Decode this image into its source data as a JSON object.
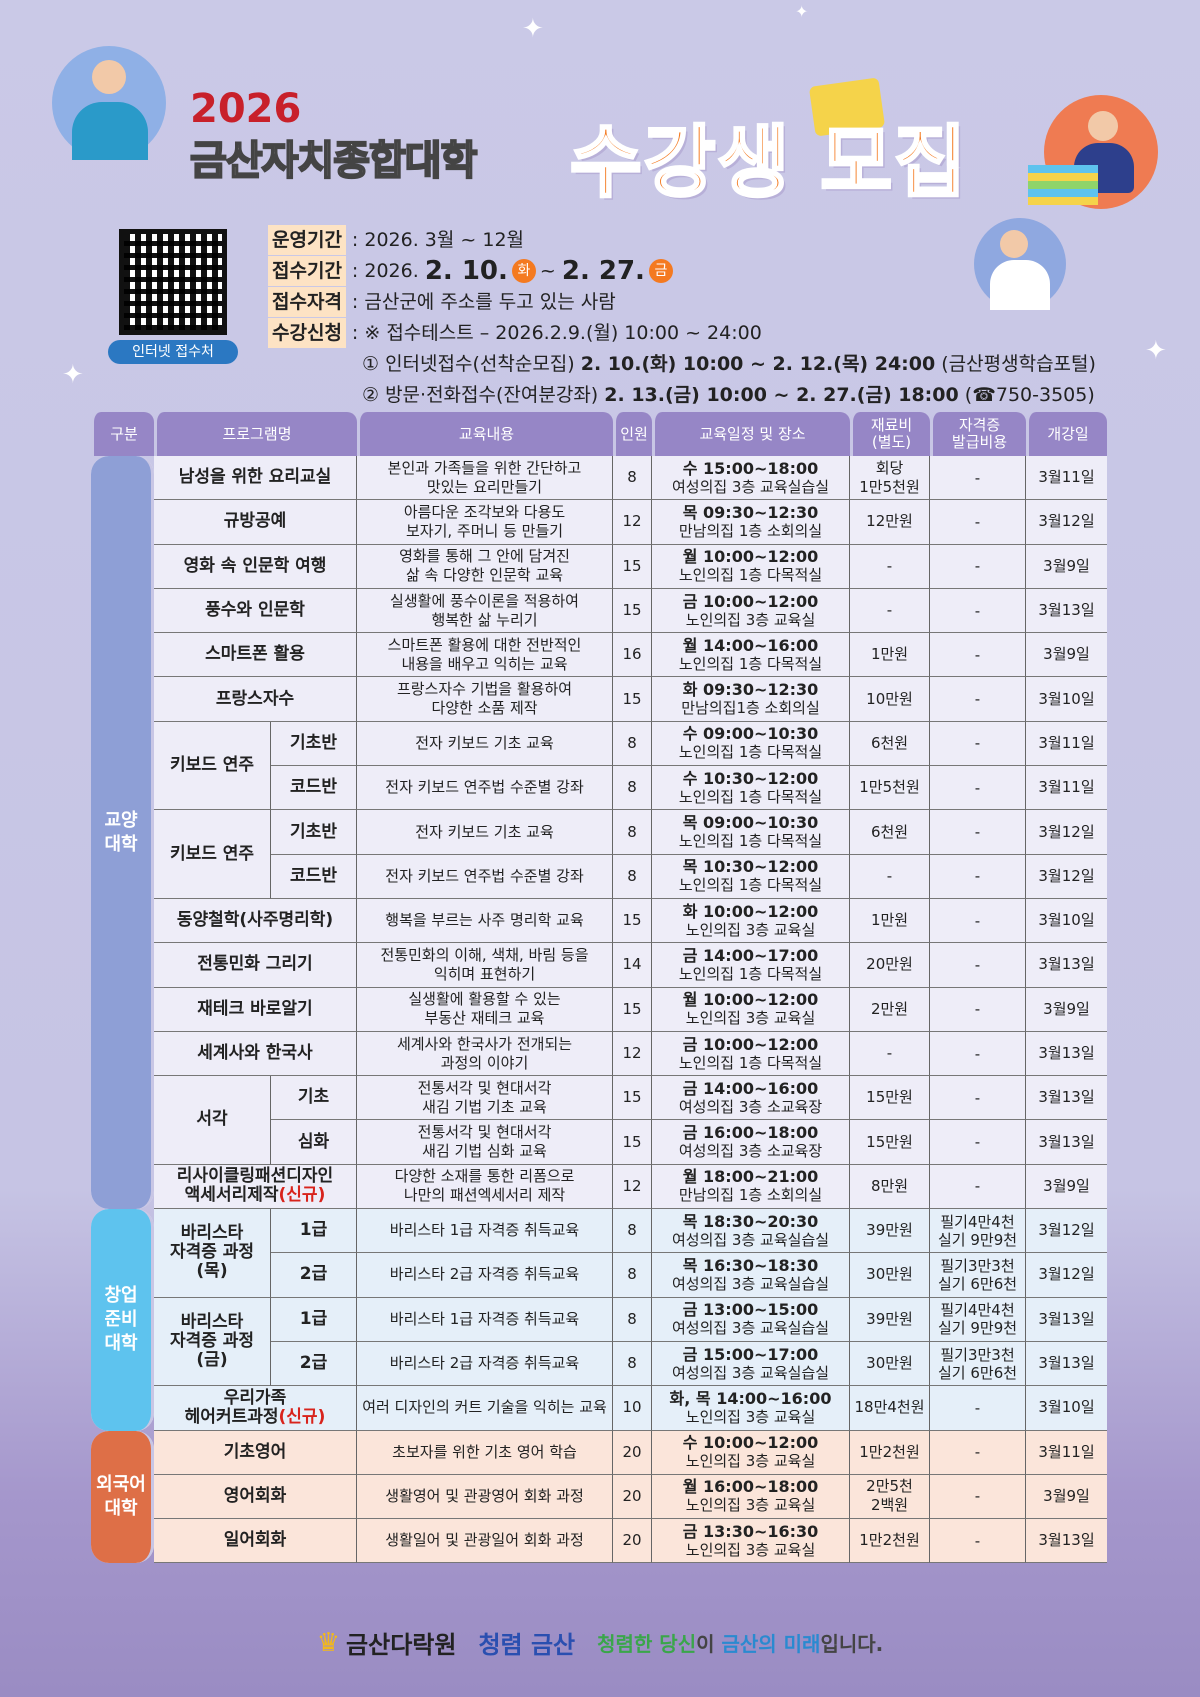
{
  "header": {
    "year": "2026",
    "school": "금산자치종합대학",
    "main_title": "수강생 모집"
  },
  "qr": {
    "label": "인터넷 접수처"
  },
  "info": {
    "period_label": "운영기간",
    "period_value": ": 2026. 3월 ~ 12월",
    "apply_label": "접수기간",
    "apply_prefix": ": 2026.",
    "apply_start": "2. 10.",
    "apply_start_day": "화",
    "apply_sep": "~",
    "apply_end": "2. 27.",
    "apply_end_day": "금",
    "qual_label": "접수자격",
    "qual_value": ": 금산군에 주소를 두고 있는 사람",
    "reg_label": "수강신청",
    "reg_test": ": ※ 접수테스트 – 2026.2.9.(월) 10:00 ~ 24:00",
    "reg1_prefix": "① 인터넷접수(선착순모집)",
    "reg1_bold": "2. 10.(화) 10:00 ~ 2. 12.(목) 24:00",
    "reg1_suffix": "(금산평생학습포털)",
    "reg2_prefix": "② 방문·전화접수(잔여분강좌)",
    "reg2_bold": "2. 13.(금) 10:00 ~ 2. 27.(금) 18:00",
    "reg2_suffix": "(☎750-3505)"
  },
  "table": {
    "headers": [
      "구분",
      "프로그램명",
      "교육내용",
      "인원",
      "교육일정 및 장소",
      "재료비\n(별도)",
      "자격증\n발급비용",
      "개강일"
    ],
    "sections": [
      {
        "name": "교양\n대학",
        "color": "#8e9fd6",
        "row_bg": "#eeedf8",
        "programs": [
          {
            "name": "남성을 위한 요리교실",
            "sessions": [
              {
                "content": "본인과 가족들을 위한 간단하고\n맛있는 요리만들기",
                "count": "8",
                "time": "수 15:00~18:00",
                "place": "여성의집 3층 교육실습실",
                "material": "회당\n1만5천원",
                "cert": "-",
                "start": "3월11일"
              }
            ]
          },
          {
            "name": "규방공예",
            "sessions": [
              {
                "content": "아름다운 조각보와 다용도\n보자기, 주머니 등 만들기",
                "count": "12",
                "time": "목 09:30~12:30",
                "place": "만남의집 1층 소회의실",
                "material": "12만원",
                "cert": "-",
                "start": "3월12일"
              }
            ]
          },
          {
            "name": "영화 속 인문학 여행",
            "sessions": [
              {
                "content": "영화를 통해 그 안에 담겨진\n삶 속 다양한 인문학 교육",
                "count": "15",
                "time": "월 10:00~12:00",
                "place": "노인의집 1층 다목적실",
                "material": "-",
                "cert": "-",
                "start": "3월9일"
              }
            ]
          },
          {
            "name": "풍수와 인문학",
            "sessions": [
              {
                "content": "실생활에 풍수이론을 적용하여\n행복한 삶 누리기",
                "count": "15",
                "time": "금 10:00~12:00",
                "place": "노인의집 3층 교육실",
                "material": "-",
                "cert": "-",
                "start": "3월13일"
              }
            ]
          },
          {
            "name": "스마트폰 활용",
            "sessions": [
              {
                "content": "스마트폰 활용에 대한 전반적인\n내용을 배우고 익히는 교육",
                "count": "16",
                "time": "월 14:00~16:00",
                "place": "노인의집 1층 다목적실",
                "material": "1만원",
                "cert": "-",
                "start": "3월9일"
              }
            ]
          },
          {
            "name": "프랑스자수",
            "sessions": [
              {
                "content": "프랑스자수 기법을 활용하여\n다양한 소품 제작",
                "count": "15",
                "time": "화 09:30~12:30",
                "place": "만남의집1층 소회의실",
                "material": "10만원",
                "cert": "-",
                "start": "3월10일"
              }
            ]
          },
          {
            "name": "키보드 연주",
            "sessions": [
              {
                "sub": "기초반",
                "content": "전자 키보드 기초 교육",
                "count": "8",
                "time": "수 09:00~10:30",
                "place": "노인의집 1층 다목적실",
                "material": "6천원",
                "cert": "-",
                "start": "3월11일"
              },
              {
                "sub": "코드반",
                "content": "전자 키보드 연주법 수준별 강좌",
                "count": "8",
                "time": "수 10:30~12:00",
                "place": "노인의집 1층 다목적실",
                "material": "1만5천원",
                "cert": "-",
                "start": "3월11일"
              }
            ]
          },
          {
            "name": "키보드 연주",
            "sessions": [
              {
                "sub": "기초반",
                "content": "전자 키보드 기초 교육",
                "count": "8",
                "time": "목 09:00~10:30",
                "place": "노인의집 1층 다목적실",
                "material": "6천원",
                "cert": "-",
                "start": "3월12일"
              },
              {
                "sub": "코드반",
                "content": "전자 키보드 연주법 수준별 강좌",
                "count": "8",
                "time": "목 10:30~12:00",
                "place": "노인의집 1층 다목적실",
                "material": "-",
                "cert": "-",
                "start": "3월12일"
              }
            ]
          },
          {
            "name": "동양철학(사주명리학)",
            "sessions": [
              {
                "content": "행복을 부르는 사주 명리학 교육",
                "count": "15",
                "time": "화 10:00~12:00",
                "place": "노인의집 3층 교육실",
                "material": "1만원",
                "cert": "-",
                "start": "3월10일"
              }
            ]
          },
          {
            "name": "전통민화 그리기",
            "sessions": [
              {
                "content": "전통민화의 이해, 색채, 바림 등을\n익히며 표현하기",
                "count": "14",
                "time": "금 14:00~17:00",
                "place": "노인의집 1층 다목적실",
                "material": "20만원",
                "cert": "-",
                "start": "3월13일"
              }
            ]
          },
          {
            "name": "재테크 바로알기",
            "sessions": [
              {
                "content": "실생활에 활용할 수 있는\n부동산 재테크 교육",
                "count": "15",
                "time": "월 10:00~12:00",
                "place": "노인의집 3층 교육실",
                "material": "2만원",
                "cert": "-",
                "start": "3월9일"
              }
            ]
          },
          {
            "name": "세계사와 한국사",
            "sessions": [
              {
                "content": "세계사와 한국사가 전개되는\n과정의 이야기",
                "count": "12",
                "time": "금 10:00~12:00",
                "place": "노인의집 1층 다목적실",
                "material": "-",
                "cert": "-",
                "start": "3월13일"
              }
            ]
          },
          {
            "name": "서각",
            "sessions": [
              {
                "sub": "기초",
                "content": "전통서각 및 현대서각\n새김 기법 기초 교육",
                "count": "15",
                "time": "금 14:00~16:00",
                "place": "여성의집 3층 소교육장",
                "material": "15만원",
                "cert": "-",
                "start": "3월13일"
              },
              {
                "sub": "심화",
                "content": "전통서각 및 현대서각\n새김 기법 심화 교육",
                "count": "15",
                "time": "금 16:00~18:00",
                "place": "여성의집 3층 소교육장",
                "material": "15만원",
                "cert": "-",
                "start": "3월13일"
              }
            ]
          },
          {
            "name": "리사이클링패션디자인\n액세서리제작",
            "new_tag": "(신규)",
            "sessions": [
              {
                "content": "다양한 소재를 통한 리폼으로\n나만의 패션엑세서리 제작",
                "count": "12",
                "time": "월 18:00~21:00",
                "place": "만남의집 1층 소회의실",
                "material": "8만원",
                "cert": "-",
                "start": "3월9일"
              }
            ]
          }
        ]
      },
      {
        "name": "창업\n준비\n대학",
        "color": "#5ec3ee",
        "row_bg": "#e5eff9",
        "programs": [
          {
            "name": "바리스타\n자격증 과정(목)",
            "sessions": [
              {
                "sub": "1급",
                "content": "바리스타 1급 자격증 취득교육",
                "count": "8",
                "time": "목 18:30~20:30",
                "place": "여성의집 3층 교육실습실",
                "material": "39만원",
                "cert": "필기4만4천\n실기 9만9천",
                "start": "3월12일"
              },
              {
                "sub": "2급",
                "content": "바리스타 2급 자격증 취득교육",
                "count": "8",
                "time": "목 16:30~18:30",
                "place": "여성의집 3층 교육실습실",
                "material": "30만원",
                "cert": "필기3만3천\n실기 6만6천",
                "start": "3월12일"
              }
            ]
          },
          {
            "name": "바리스타\n자격증 과정(금)",
            "sessions": [
              {
                "sub": "1급",
                "content": "바리스타 1급 자격증 취득교육",
                "count": "8",
                "time": "금 13:00~15:00",
                "place": "여성의집 3층 교육실습실",
                "material": "39만원",
                "cert": "필기4만4천\n실기 9만9천",
                "start": "3월13일"
              },
              {
                "sub": "2급",
                "content": "바리스타 2급 자격증 취득교육",
                "count": "8",
                "time": "금 15:00~17:00",
                "place": "여성의집 3층 교육실습실",
                "material": "30만원",
                "cert": "필기3만3천\n실기 6만6천",
                "start": "3월13일"
              }
            ]
          },
          {
            "name": "우리가족\n헤어커트과정",
            "new_tag": "(신규)",
            "sessions": [
              {
                "content": "여러 디자인의 커트 기술을 익히는 교육",
                "count": "10",
                "time": "화, 목 14:00~16:00",
                "place": "노인의집 3층 교육실",
                "material": "18만4천원",
                "cert": "-",
                "start": "3월10일"
              }
            ]
          }
        ]
      },
      {
        "name": "외국어\n대학",
        "color": "#de6f47",
        "row_bg": "#fbe5da",
        "programs": [
          {
            "name": "기초영어",
            "sessions": [
              {
                "content": "초보자를 위한 기초 영어 학습",
                "count": "20",
                "time": "수 10:00~12:00",
                "place": "노인의집 3층 교육실",
                "material": "1만2천원",
                "cert": "-",
                "start": "3월11일"
              }
            ]
          },
          {
            "name": "영어회화",
            "sessions": [
              {
                "content": "생활영어 및 관광영어 회화 과정",
                "count": "20",
                "time": "월 16:00~18:00",
                "place": "노인의집 3층 교육실",
                "material": "2만5천\n2백원",
                "cert": "-",
                "start": "3월9일"
              }
            ]
          },
          {
            "name": "일어회화",
            "sessions": [
              {
                "content": "생활일어 및 관광일어 회화 과정",
                "count": "20",
                "time": "금 13:30~16:30",
                "place": "노인의집 3층 교육실",
                "material": "1만2천원",
                "cert": "-",
                "start": "3월13일"
              }
            ]
          }
        ]
      }
    ]
  },
  "footer": {
    "logo1": "금산다락원",
    "logo2": "청렴 금산",
    "slogan_parts": [
      {
        "text": "청렴한 당신",
        "color": "#3aa64a"
      },
      {
        "text": "이 ",
        "color": "#444444"
      },
      {
        "text": "금산의 미래",
        "color": "#2a8ad0"
      },
      {
        "text": "입니다.",
        "color": "#444444"
      }
    ]
  }
}
